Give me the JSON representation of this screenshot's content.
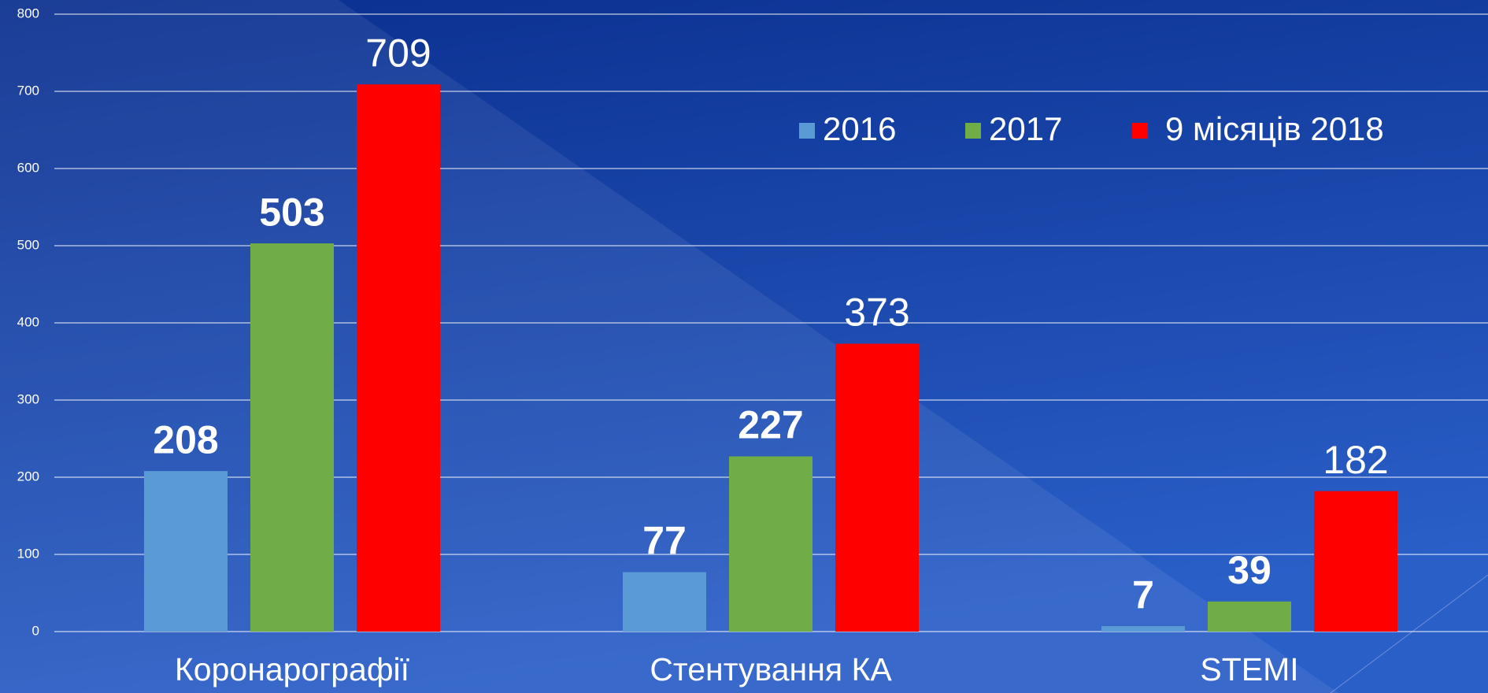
{
  "chart_data": {
    "type": "bar",
    "categories": [
      "Коронарографії",
      "Стентування КА",
      "STEMI"
    ],
    "series": [
      {
        "name": "2016",
        "color": "#5b9bd5",
        "values": [
          208,
          77,
          7
        ]
      },
      {
        "name": "2017",
        "color": "#70ad47",
        "values": [
          503,
          227,
          39
        ]
      },
      {
        "name": "9 місяців 2018",
        "color": "#ff0000",
        "values": [
          709,
          373,
          182
        ]
      }
    ],
    "ylim": [
      0,
      800
    ],
    "yticks": [
      0,
      100,
      200,
      300,
      400,
      500,
      600,
      700,
      800
    ],
    "grid": true,
    "legend": "top-right"
  }
}
